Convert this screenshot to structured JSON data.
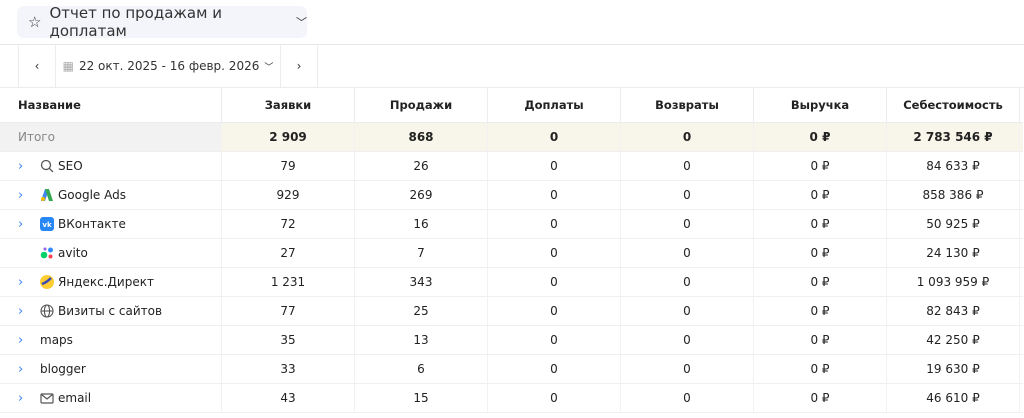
{
  "report": {
    "title": "Отчет по продажам и доплатам"
  },
  "toolbar": {
    "date_range": "22 окт. 2025 - 16 февр. 2026"
  },
  "columns": [
    "Название",
    "Заявки",
    "Продажи",
    "Доплаты",
    "Возвраты",
    "Выручка",
    "Себестоимость"
  ],
  "total": {
    "name": "Итого",
    "values": [
      "2 909",
      "868",
      "0",
      "0",
      "0 ₽",
      "2 783 546 ₽"
    ]
  },
  "rows": [
    {
      "name": "SEO",
      "icon": "search-icon",
      "expandable": true,
      "values": [
        "79",
        "26",
        "0",
        "0",
        "0 ₽",
        "84 633 ₽"
      ]
    },
    {
      "name": "Google Ads",
      "icon": "google-ads-icon",
      "expandable": true,
      "values": [
        "929",
        "269",
        "0",
        "0",
        "0 ₽",
        "858 386 ₽"
      ]
    },
    {
      "name": "ВКонтакте",
      "icon": "vk-icon",
      "expandable": true,
      "values": [
        "72",
        "16",
        "0",
        "0",
        "0 ₽",
        "50 925 ₽"
      ]
    },
    {
      "name": "avito",
      "icon": "avito-icon",
      "expandable": false,
      "values": [
        "27",
        "7",
        "0",
        "0",
        "0 ₽",
        "24 130 ₽"
      ]
    },
    {
      "name": "Яндекс.Директ",
      "icon": "yandex-direct-icon",
      "expandable": true,
      "values": [
        "1 231",
        "343",
        "0",
        "0",
        "0 ₽",
        "1 093 959 ₽"
      ]
    },
    {
      "name": "Визиты с сайтов",
      "icon": "globe-icon",
      "expandable": true,
      "values": [
        "77",
        "25",
        "0",
        "0",
        "0 ₽",
        "82 843 ₽"
      ]
    },
    {
      "name": "maps",
      "icon": "",
      "expandable": true,
      "values": [
        "35",
        "13",
        "0",
        "0",
        "0 ₽",
        "42 250 ₽"
      ]
    },
    {
      "name": "blogger",
      "icon": "",
      "expandable": true,
      "values": [
        "33",
        "6",
        "0",
        "0",
        "0 ₽",
        "19 630 ₽"
      ]
    },
    {
      "name": "email",
      "icon": "mail-icon",
      "expandable": true,
      "values": [
        "43",
        "15",
        "0",
        "0",
        "0 ₽",
        "46 610 ₽"
      ]
    }
  ]
}
